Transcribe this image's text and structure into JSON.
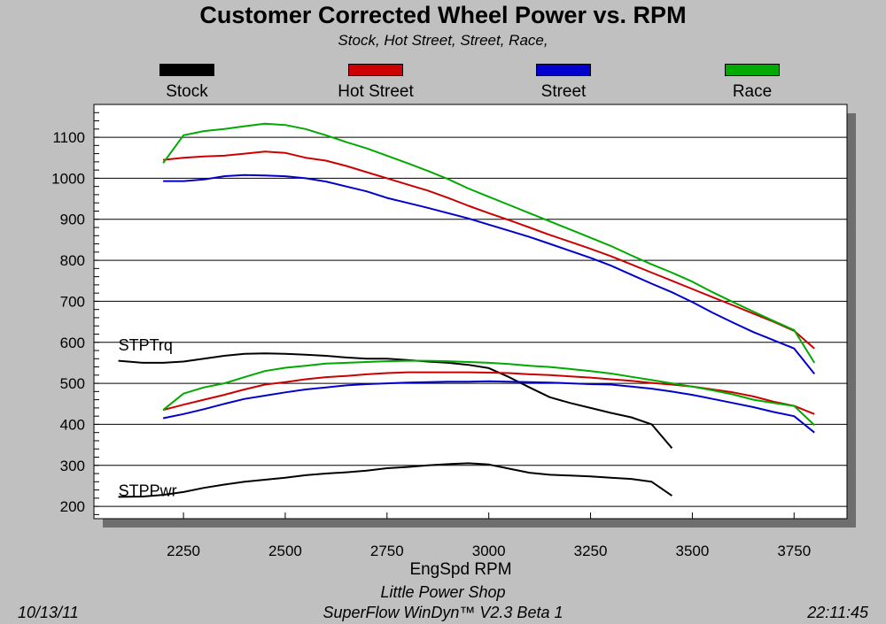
{
  "header": {
    "title": "Customer Corrected Wheel Power vs. RPM",
    "subtitle": "Stock, Hot Street, Street, Race,"
  },
  "footer": {
    "shop": "Little Power Shop",
    "software": "SuperFlow WinDyn™ V2.3 Beta 1",
    "date": "10/13/11",
    "time": "22:11:45"
  },
  "chart_data": {
    "type": "line",
    "title": "Customer Corrected Wheel Power vs. RPM",
    "subtitle": "Stock, Hot Street, Street, Race,",
    "xlabel": "EngSpd  RPM",
    "ylabel": "",
    "xlim": [
      2030,
      3880
    ],
    "ylim": [
      170,
      1180
    ],
    "x_ticks": [
      2250,
      2500,
      2750,
      3000,
      3250,
      3500,
      3750
    ],
    "y_ticks": [
      200,
      300,
      400,
      500,
      600,
      700,
      800,
      900,
      1000,
      1100
    ],
    "grid": "horizontal",
    "legend": "top",
    "curve_labels": [
      {
        "text": "STPTrq",
        "x": 2090,
        "y": 580
      },
      {
        "text": "STPPwr",
        "x": 2090,
        "y": 225
      }
    ],
    "series": [
      {
        "name": "Stock",
        "color": "#000000",
        "torque": {
          "x": [
            2090,
            2150,
            2200,
            2250,
            2300,
            2350,
            2400,
            2450,
            2500,
            2550,
            2600,
            2650,
            2700,
            2750,
            2800,
            2850,
            2900,
            2950,
            3000,
            3050,
            3100,
            3150,
            3200,
            3250,
            3300,
            3350,
            3400,
            3450
          ],
          "y": [
            555,
            550,
            550,
            553,
            560,
            567,
            572,
            573,
            572,
            570,
            567,
            563,
            560,
            560,
            557,
            553,
            550,
            545,
            537,
            515,
            490,
            466,
            452,
            440,
            428,
            417,
            400,
            342
          ]
        },
        "power": {
          "x": [
            2090,
            2150,
            2200,
            2250,
            2300,
            2350,
            2400,
            2450,
            2500,
            2550,
            2600,
            2650,
            2700,
            2750,
            2800,
            2850,
            2900,
            2950,
            3000,
            3050,
            3100,
            3150,
            3200,
            3250,
            3300,
            3350,
            3400,
            3450
          ],
          "y": [
            223,
            224,
            228,
            235,
            245,
            253,
            260,
            265,
            270,
            276,
            280,
            283,
            287,
            293,
            296,
            300,
            303,
            305,
            302,
            292,
            282,
            277,
            275,
            273,
            270,
            267,
            260,
            226
          ]
        }
      },
      {
        "name": "Hot Street",
        "color": "#cc0000",
        "torque": {
          "x": [
            2200,
            2250,
            2300,
            2350,
            2400,
            2450,
            2500,
            2550,
            2600,
            2650,
            2700,
            2750,
            2800,
            2850,
            2900,
            2950,
            3000,
            3050,
            3100,
            3150,
            3200,
            3250,
            3300,
            3350,
            3400,
            3450,
            3500,
            3550,
            3600,
            3650,
            3700,
            3750,
            3800
          ],
          "y": [
            1045,
            1050,
            1053,
            1055,
            1060,
            1065,
            1062,
            1050,
            1043,
            1030,
            1015,
            1000,
            985,
            970,
            952,
            933,
            915,
            898,
            880,
            862,
            845,
            828,
            810,
            790,
            770,
            750,
            730,
            710,
            690,
            670,
            650,
            628,
            585
          ]
        },
        "power": {
          "x": [
            2200,
            2250,
            2300,
            2350,
            2400,
            2450,
            2500,
            2550,
            2600,
            2650,
            2700,
            2750,
            2800,
            2850,
            2900,
            2950,
            3000,
            3050,
            3100,
            3150,
            3200,
            3250,
            3300,
            3350,
            3400,
            3450,
            3500,
            3550,
            3600,
            3650,
            3700,
            3750,
            3800
          ],
          "y": [
            435,
            448,
            460,
            472,
            485,
            497,
            503,
            510,
            515,
            518,
            522,
            525,
            527,
            527,
            527,
            527,
            526,
            525,
            522,
            520,
            517,
            514,
            510,
            506,
            501,
            497,
            492,
            485,
            478,
            468,
            455,
            445,
            425
          ]
        }
      },
      {
        "name": "Street",
        "color": "#0000cc",
        "torque": {
          "x": [
            2200,
            2250,
            2300,
            2350,
            2400,
            2450,
            2500,
            2550,
            2600,
            2650,
            2700,
            2750,
            2800,
            2850,
            2900,
            2950,
            3000,
            3050,
            3100,
            3150,
            3200,
            3250,
            3300,
            3350,
            3400,
            3450,
            3500,
            3550,
            3600,
            3650,
            3700,
            3750,
            3800
          ],
          "y": [
            993,
            993,
            997,
            1005,
            1008,
            1007,
            1005,
            1000,
            992,
            980,
            968,
            952,
            940,
            928,
            915,
            902,
            887,
            872,
            857,
            840,
            823,
            806,
            787,
            765,
            743,
            722,
            698,
            672,
            648,
            625,
            605,
            585,
            523
          ]
        },
        "power": {
          "x": [
            2200,
            2250,
            2300,
            2350,
            2400,
            2450,
            2500,
            2550,
            2600,
            2650,
            2700,
            2750,
            2800,
            2850,
            2900,
            2950,
            3000,
            3050,
            3100,
            3150,
            3200,
            3250,
            3300,
            3350,
            3400,
            3450,
            3500,
            3550,
            3600,
            3650,
            3700,
            3750,
            3800
          ],
          "y": [
            415,
            425,
            437,
            450,
            462,
            470,
            478,
            485,
            490,
            495,
            498,
            500,
            502,
            503,
            504,
            504,
            505,
            504,
            503,
            502,
            500,
            498,
            497,
            492,
            487,
            480,
            472,
            462,
            452,
            442,
            430,
            420,
            380
          ]
        }
      },
      {
        "name": "Race",
        "color": "#00aa00",
        "torque": {
          "x": [
            2200,
            2250,
            2300,
            2350,
            2400,
            2450,
            2500,
            2550,
            2600,
            2650,
            2700,
            2750,
            2800,
            2850,
            2900,
            2950,
            3000,
            3050,
            3100,
            3150,
            3200,
            3250,
            3300,
            3350,
            3400,
            3450,
            3500,
            3550,
            3600,
            3650,
            3700,
            3750,
            3800
          ],
          "y": [
            1037,
            1105,
            1115,
            1120,
            1127,
            1133,
            1130,
            1120,
            1105,
            1088,
            1073,
            1055,
            1037,
            1018,
            998,
            975,
            955,
            935,
            915,
            895,
            875,
            855,
            835,
            812,
            790,
            770,
            748,
            722,
            698,
            675,
            652,
            630,
            550
          ]
        },
        "power": {
          "x": [
            2200,
            2250,
            2300,
            2350,
            2400,
            2450,
            2500,
            2550,
            2600,
            2650,
            2700,
            2750,
            2800,
            2850,
            2900,
            2950,
            3000,
            3050,
            3100,
            3150,
            3200,
            3250,
            3300,
            3350,
            3400,
            3450,
            3500,
            3550,
            3600,
            3650,
            3700,
            3750,
            3800
          ],
          "y": [
            435,
            475,
            490,
            500,
            515,
            530,
            538,
            543,
            548,
            550,
            552,
            554,
            555,
            555,
            554,
            552,
            550,
            547,
            543,
            540,
            535,
            530,
            524,
            516,
            508,
            500,
            492,
            483,
            473,
            460,
            452,
            445,
            398
          ]
        }
      }
    ]
  }
}
